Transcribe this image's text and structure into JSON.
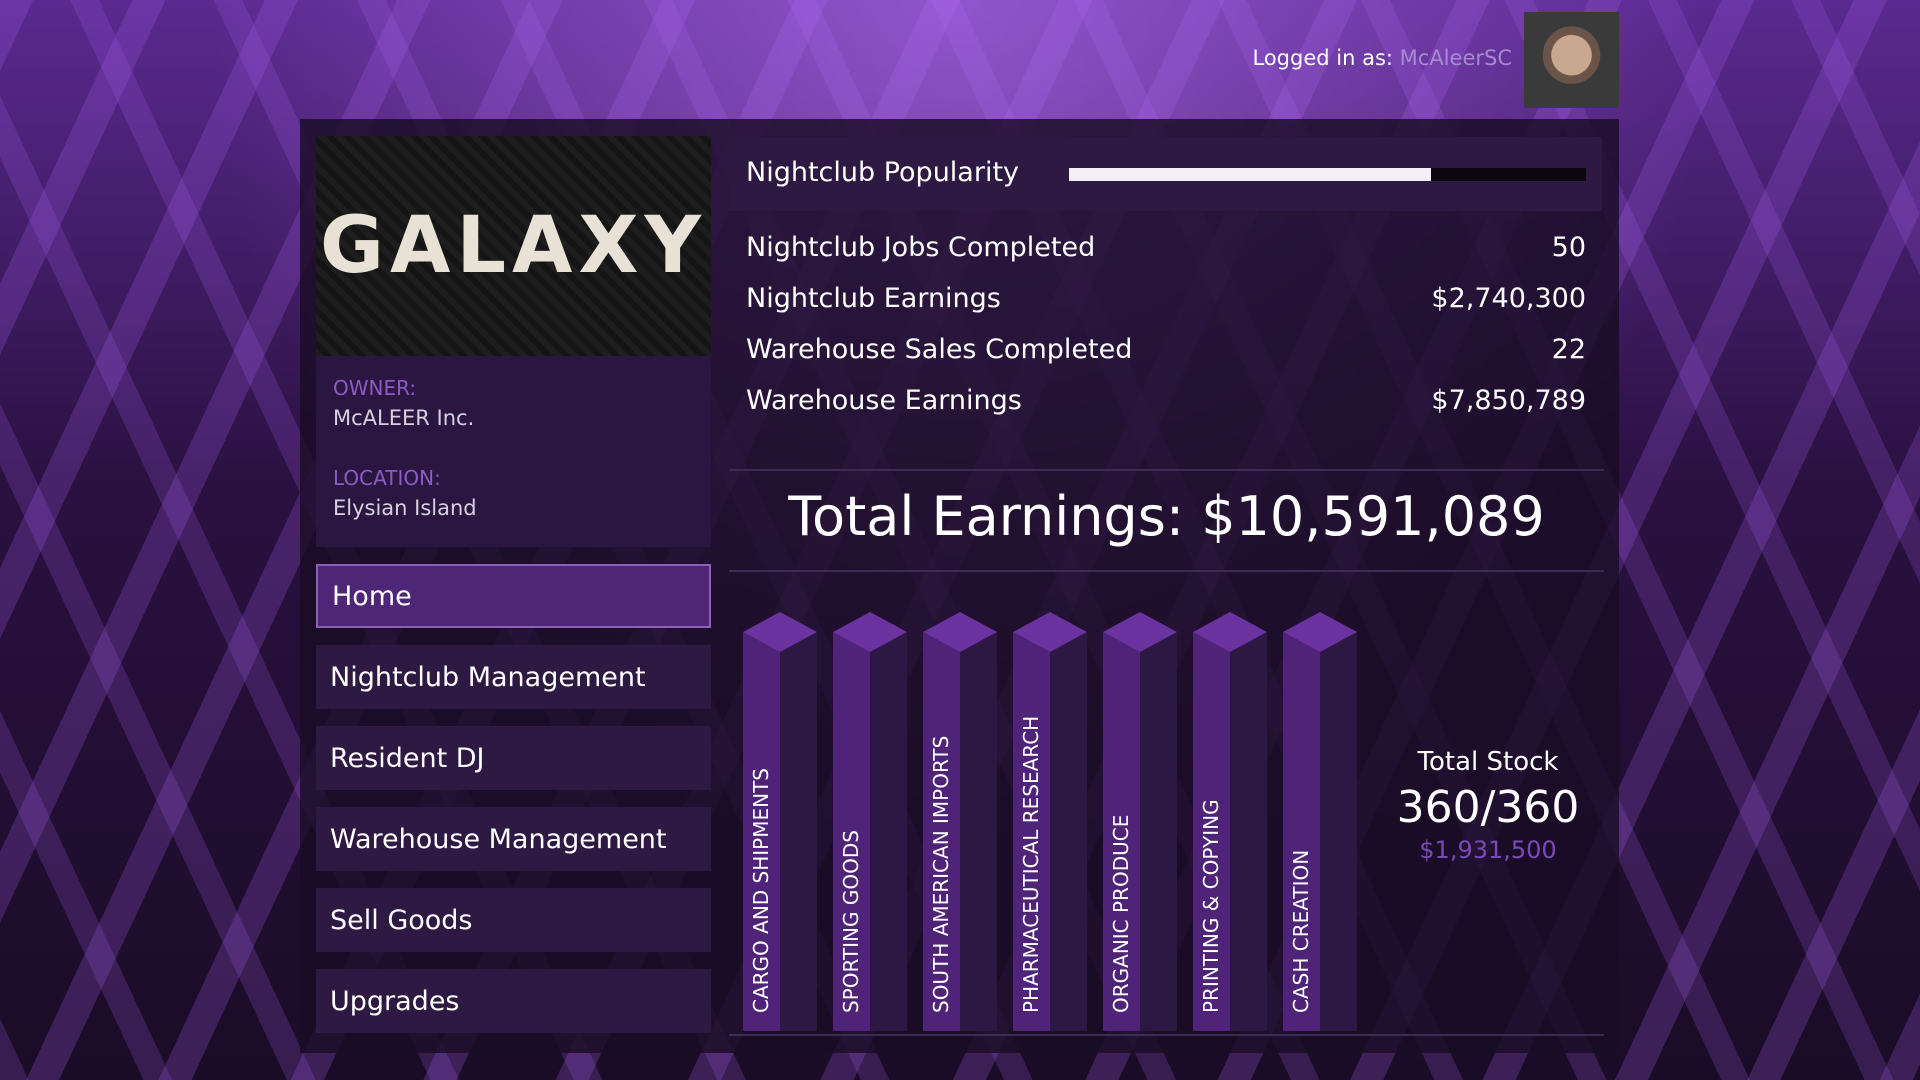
{
  "header": {
    "logged_in_label": "Logged in as:",
    "username": "McAleerSC"
  },
  "business": {
    "logo": "GALAXY",
    "owner_label": "OWNER:",
    "owner": "McALEER Inc.",
    "location_label": "LOCATION:",
    "location": "Elysian Island"
  },
  "nav": [
    "Home",
    "Nightclub Management",
    "Resident DJ",
    "Warehouse Management",
    "Sell Goods",
    "Upgrades"
  ],
  "popularity": {
    "label": "Nightclub Popularity",
    "value": 70,
    "max": 100
  },
  "stats": [
    {
      "label": "Nightclub Jobs Completed",
      "value": "50"
    },
    {
      "label": "Nightclub Earnings",
      "value": "$2,740,300"
    },
    {
      "label": "Warehouse Sales Completed",
      "value": "22"
    },
    {
      "label": "Warehouse Earnings",
      "value": "$7,850,789"
    }
  ],
  "total": {
    "label": "Total Earnings:",
    "value": "$10,591,089"
  },
  "stock": {
    "products": [
      "CARGO AND SHIPMENTS",
      "SPORTING GOODS",
      "SOUTH AMERICAN IMPORTS",
      "PHARMACEUTICAL RESEARCH",
      "ORGANIC PRODUCE",
      "PRINTING & COPYING",
      "CASH CREATION"
    ],
    "total_label": "Total Stock",
    "amount": "360/360",
    "value": "$1,931,500"
  }
}
